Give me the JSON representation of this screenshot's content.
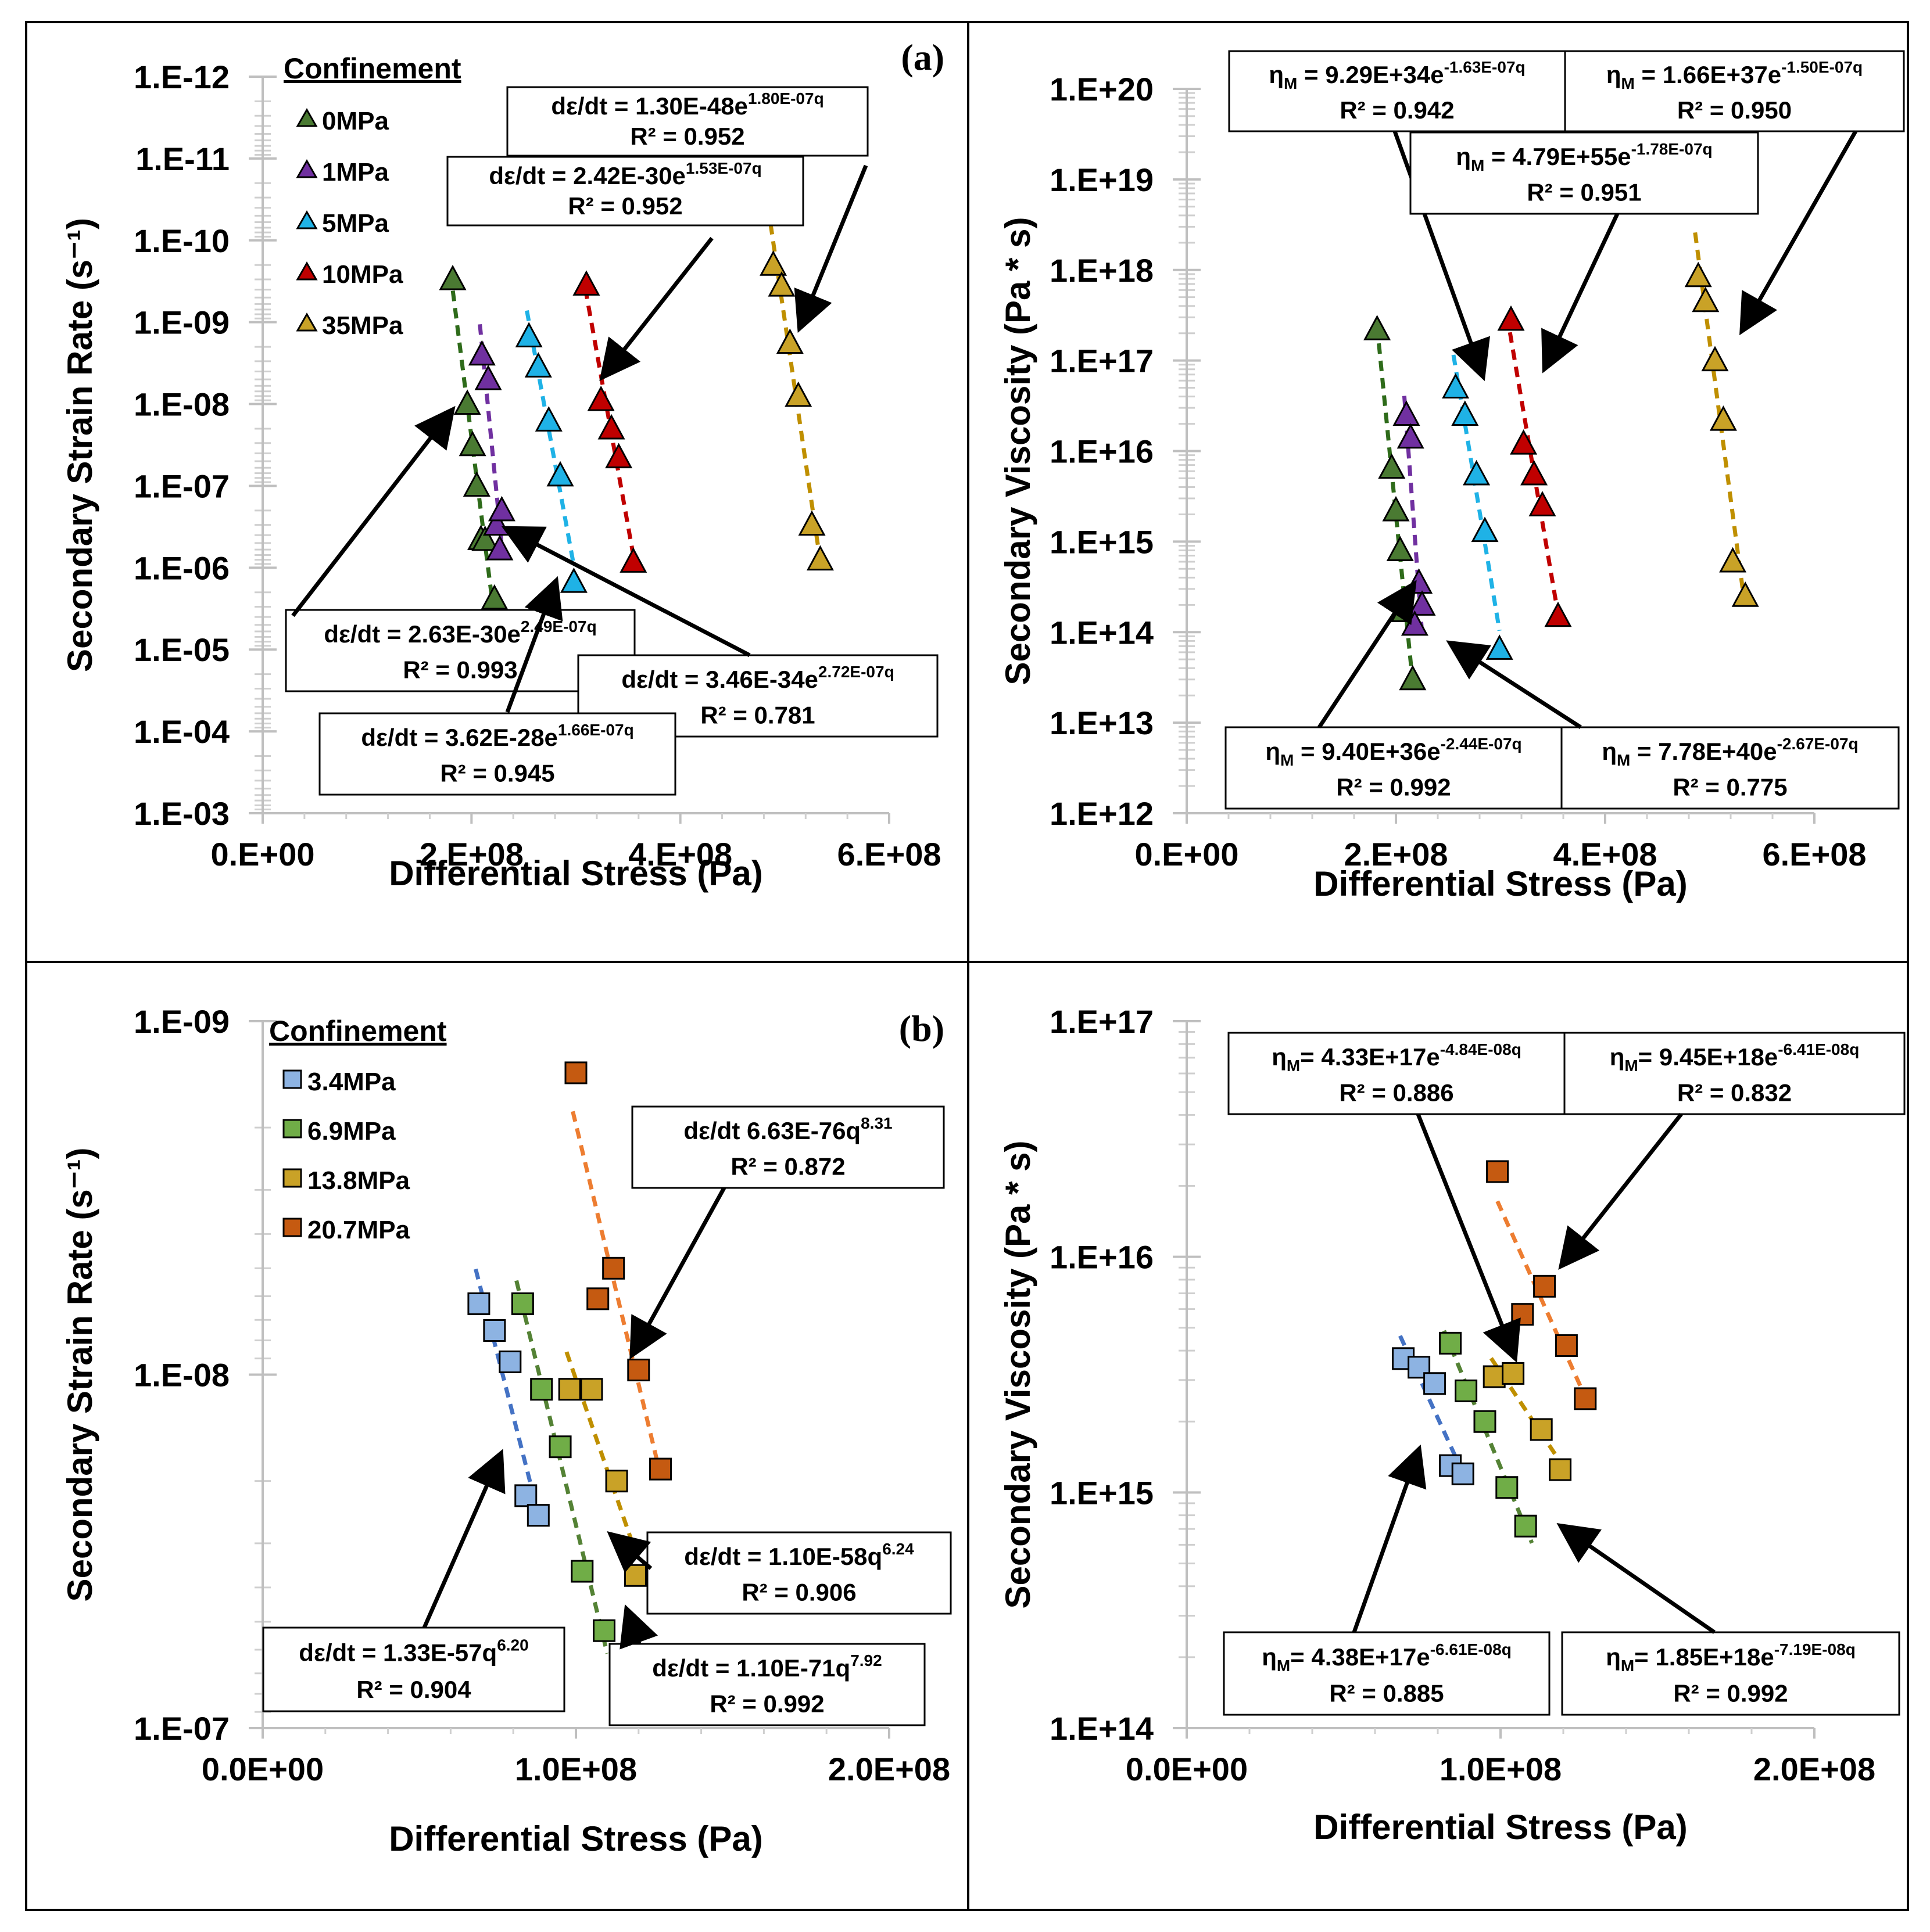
{
  "figure": {
    "labels": {
      "a": "(a)",
      "b": "(b)"
    }
  },
  "chart_data": [
    {
      "id": "a_left",
      "type": "scatter",
      "yscale": "log",
      "yreversed": true,
      "xlabel": "Differential Stress (Pa)",
      "ylabel": "Secondary Strain Rate (s⁻¹)",
      "xlim": [
        0,
        600000000
      ],
      "ylim_exp": [
        -12,
        -3
      ],
      "xticks": [
        "0.E+00",
        "2.E+08",
        "4.E+08",
        "6.E+08"
      ],
      "yticks": [
        "1.E-12",
        "1.E-11",
        "1.E-10",
        "1.E-09",
        "1.E-08",
        "1.E-07",
        "1.E-06",
        "1.E-05",
        "1.E-04",
        "1.E-03"
      ],
      "legend_title": "Confinement",
      "legend_marker": "triangle",
      "series": [
        {
          "name": "0MPa",
          "color": "#4a7a32",
          "line_color": "#2e6b1a",
          "x": [
            182000000,
            196000000,
            201000000,
            205000000,
            209000000,
            213000000,
            222000000
          ],
          "y": [
            3e-10,
            1e-08,
            3.2e-08,
            1e-07,
            4.5e-07,
            4.6e-07,
            2.4e-06
          ],
          "fit_x": [
            180000000,
            222000000
          ]
        },
        {
          "name": "1MPa",
          "color": "#7030a0",
          "line_color": "#7030a0",
          "x": [
            210000000,
            216000000,
            224000000,
            227000000,
            229000000
          ],
          "y": [
            2.5e-09,
            5e-09,
            3e-07,
            6e-07,
            2e-07
          ],
          "fit_x": [
            208000000,
            229000000
          ]
        },
        {
          "name": "5MPa",
          "color": "#1fb2e6",
          "line_color": "#1fb2e6",
          "x": [
            255000000,
            264000000,
            274000000,
            285000000,
            298000000
          ],
          "y": [
            1.5e-09,
            3.5e-09,
            1.6e-08,
            7.5e-08,
            1.5e-06
          ],
          "fit_x": [
            253000000,
            298000000
          ]
        },
        {
          "name": "10MPa",
          "color": "#c00000",
          "line_color": "#c00000",
          "x": [
            310000000,
            324000000,
            334000000,
            341000000,
            355000000
          ],
          "y": [
            3.5e-10,
            9e-09,
            2e-08,
            4.5e-08,
            8.5e-07
          ],
          "fit_x": [
            309000000,
            355000000
          ]
        },
        {
          "name": "35MPa",
          "color": "#c9a227",
          "line_color": "#bf8f00",
          "x": [
            489000000,
            497000000,
            505000000,
            513000000,
            526000000,
            534000000
          ],
          "y": [
            2e-10,
            3.6e-10,
            1.8e-09,
            8e-09,
            3e-07,
            8e-07
          ],
          "fit_x": [
            484000000,
            534000000
          ]
        }
      ],
      "annotations": [
        {
          "line1_pre": "dε/dt = 1.30E-48e",
          "line1_sup": "1.80E-07q",
          "line2": "R² = 0.952"
        },
        {
          "line1_pre": "dε/dt = 2.42E-30e",
          "line1_sup": "1.53E-07q",
          "line2": "R² = 0.952"
        },
        {
          "line1_pre": "dε/dt = 2.63E-30e",
          "line1_sup": "2.49E-07q",
          "line2": "R² = 0.993"
        },
        {
          "line1_pre": "dε/dt = 3.46E-34e",
          "line1_sup": "2.72E-07q",
          "line2": "R² = 0.781"
        },
        {
          "line1_pre": "dε/dt = 3.62E-28e",
          "line1_sup": "1.66E-07q",
          "line2": "R² = 0.945"
        }
      ]
    },
    {
      "id": "a_right",
      "type": "scatter",
      "yscale": "log",
      "yreversed": false,
      "xlabel": "Differential Stress (Pa)",
      "ylabel": "Secondary Viscosity (Pa * s)",
      "xlim": [
        0,
        600000000
      ],
      "ylim_exp": [
        12,
        20
      ],
      "xticks": [
        "0.E+00",
        "2.E+08",
        "4.E+08",
        "6.E+08"
      ],
      "yticks": [
        "1.E+20",
        "1.E+19",
        "1.E+18",
        "1.E+17",
        "1.E+16",
        "1.E+15",
        "1.E+14",
        "1.E+13",
        "1.E+12"
      ],
      "legend_marker": "triangle",
      "series": [
        {
          "name": "0MPa",
          "color": "#4a7a32",
          "line_color": "#2e6b1a",
          "x": [
            182000000,
            196000000,
            200000000,
            204000000,
            208000000,
            216000000
          ],
          "y": [
            2.2e+17,
            6500000000000000.0,
            2200000000000000.0,
            800000000000000.0,
            170000000000000.0,
            30000000000000.0
          ],
          "fit_x": [
            182000000,
            216000000
          ]
        },
        {
          "name": "1MPa",
          "color": "#7030a0",
          "line_color": "#7030a0",
          "x": [
            210000000,
            214000000,
            222000000,
            225000000,
            218000000
          ],
          "y": [
            2.5e+16,
            1.4e+16,
            350000000000000.0,
            200000000000000.0,
            120000000000000.0
          ],
          "fit_x": [
            208000000,
            225000000
          ]
        },
        {
          "name": "5MPa",
          "color": "#1fb2e6",
          "line_color": "#1fb2e6",
          "x": [
            257000000,
            266000000,
            277000000,
            285000000,
            299000000
          ],
          "y": [
            5e+16,
            2.5e+16,
            5500000000000000.0,
            1300000000000000.0,
            65000000000000.0
          ],
          "fit_x": [
            255000000,
            299000000
          ]
        },
        {
          "name": "10MPa",
          "color": "#c00000",
          "line_color": "#c00000",
          "x": [
            310000000,
            322000000,
            332000000,
            340000000,
            355000000
          ],
          "y": [
            2.8e+17,
            1.2e+16,
            5500000000000000.0,
            2500000000000000.0,
            150000000000000.0
          ],
          "fit_x": [
            309000000,
            355000000
          ]
        },
        {
          "name": "35MPa",
          "color": "#c9a227",
          "line_color": "#bf8f00",
          "x": [
            489000000,
            496000000,
            505000000,
            513000000,
            522000000,
            534000000
          ],
          "y": [
            8.5e+17,
            4.5e+17,
            1e+17,
            2.2e+16,
            600000000000000.0,
            250000000000000.0
          ],
          "fit_x": [
            486000000,
            534000000
          ]
        }
      ],
      "annotations": [
        {
          "line1_pre": "η",
          "line1_sub": "M",
          "line1_mid": " = 9.29E+34e",
          "line1_sup": "-1.63E-07q",
          "line2": "R² = 0.942"
        },
        {
          "line1_pre": "η",
          "line1_sub": "M",
          "line1_mid": " = 1.66E+37e",
          "line1_sup": "-1.50E-07q",
          "line2": "R² = 0.950"
        },
        {
          "line1_pre": "η",
          "line1_sub": "M",
          "line1_mid": " = 4.79E+55e",
          "line1_sup": "-1.78E-07q",
          "line2": "R² = 0.951"
        },
        {
          "line1_pre": "η",
          "line1_sub": "M",
          "line1_mid": " = 9.40E+36e",
          "line1_sup": "-2.44E-07q",
          "line2": "R² = 0.992"
        },
        {
          "line1_pre": "η",
          "line1_sub": "M",
          "line1_mid": " = 7.78E+40e",
          "line1_sup": "-2.67E-07q",
          "line2": "R² = 0.775"
        }
      ]
    },
    {
      "id": "b_left",
      "type": "scatter",
      "yscale": "log",
      "yreversed": true,
      "xlabel": "Differential Stress (Pa)",
      "ylabel": "Secondary Strain Rate (s⁻¹)",
      "xlim": [
        0,
        200000000
      ],
      "ylim_exp": [
        -9,
        -7
      ],
      "xticks": [
        "0.0E+00",
        "1.0E+08",
        "2.0E+08"
      ],
      "yticks": [
        "1.E-09",
        "1.E-08",
        "1.E-07"
      ],
      "legend_title": "Confinement",
      "legend_marker": "square",
      "series": [
        {
          "name": "3.4MPa",
          "color": "#8db3e2",
          "line_color": "#4472c4",
          "x": [
            69000000,
            74000000,
            79000000,
            84000000,
            88000000
          ],
          "y": [
            6.3e-09,
            7.5e-09,
            9.2e-09,
            2.2e-08,
            2.5e-08
          ],
          "fit_x": [
            68000000,
            88000000
          ]
        },
        {
          "name": "6.9MPa",
          "color": "#70ad47",
          "line_color": "#548235",
          "x": [
            83000000,
            89000000,
            95000000,
            102000000,
            109000000
          ],
          "y": [
            6.3e-09,
            1.1e-08,
            1.6e-08,
            3.6e-08,
            5.3e-08
          ],
          "fit_x": [
            81000000,
            110000000
          ]
        },
        {
          "name": "13.8MPa",
          "color": "#c9a227",
          "line_color": "#bf8f00",
          "x": [
            98000000,
            105000000,
            113000000,
            119000000
          ],
          "y": [
            1.1e-08,
            1.1e-08,
            2e-08,
            3.7e-08
          ],
          "fit_x": [
            97000000,
            119000000
          ]
        },
        {
          "name": "20.7MPa",
          "color": "#c55a11",
          "line_color": "#ed7d31",
          "x": [
            100000000,
            107000000,
            112000000,
            120000000,
            127000000
          ],
          "y": [
            1.4e-09,
            6.1e-09,
            5e-09,
            9.7e-09,
            1.85e-08
          ],
          "fit_x": [
            99000000,
            127000000
          ]
        }
      ],
      "annotations": [
        {
          "line1_pre": "dε/dt  6.63E-76q",
          "line1_sup": "8.31",
          "line2": "R² = 0.872"
        },
        {
          "line1_pre": "dε/dt = 1.10E-58q",
          "line1_sup": "6.24",
          "line2": "R² = 0.906"
        },
        {
          "line1_pre": "dε/dt = 1.33E-57q",
          "line1_sup": "6.20",
          "line2": "R² = 0.904"
        },
        {
          "line1_pre": "dε/dt  = 1.10E-71q",
          "line1_sup": "7.92",
          "line2": "R² = 0.992"
        }
      ]
    },
    {
      "id": "b_right",
      "type": "scatter",
      "yscale": "log",
      "yreversed": false,
      "xlabel": "Differential Stress (Pa)",
      "ylabel": "Secondary Viscosity (Pa * s)",
      "xlim": [
        0,
        200000000
      ],
      "ylim_exp": [
        14,
        17
      ],
      "xticks": [
        "0.0E+00",
        "1.0E+08",
        "2.0E+08"
      ],
      "yticks": [
        "1.E+17",
        "1.E+16",
        "1.E+15",
        "1.E+14"
      ],
      "legend_marker": "square",
      "series": [
        {
          "name": "3.4MPa",
          "color": "#8db3e2",
          "line_color": "#4472c4",
          "x": [
            69000000,
            74000000,
            79000000,
            84000000,
            88000000
          ],
          "y": [
            3700000000000000.0,
            3400000000000000.0,
            2900000000000000.0,
            1300000000000000.0,
            1200000000000000.0
          ],
          "fit_x": [
            68000000,
            88000000
          ]
        },
        {
          "name": "6.9MPa",
          "color": "#70ad47",
          "line_color": "#548235",
          "x": [
            84000000,
            89000000,
            95000000,
            102000000,
            108000000
          ],
          "y": [
            4300000000000000.0,
            2700000000000000.0,
            2000000000000000.0,
            1050000000000000.0,
            720000000000000.0
          ],
          "fit_x": [
            82000000,
            110000000
          ]
        },
        {
          "name": "13.8MPa",
          "color": "#c9a227",
          "line_color": "#bf8f00",
          "x": [
            98000000,
            104000000,
            113000000,
            119000000
          ],
          "y": [
            3100000000000000.0,
            3200000000000000.0,
            1850000000000000.0,
            1250000000000000.0
          ],
          "fit_x": [
            97000000,
            119000000
          ]
        },
        {
          "name": "20.7MPa",
          "color": "#c55a11",
          "line_color": "#ed7d31",
          "x": [
            99000000,
            107000000,
            114000000,
            121000000,
            127000000
          ],
          "y": [
            2.3e+16,
            5700000000000000.0,
            7500000000000000.0,
            4200000000000000.0,
            2500000000000000.0
          ],
          "fit_x": [
            99000000,
            127000000
          ]
        }
      ],
      "annotations": [
        {
          "line1_pre": "η",
          "line1_sub": "M",
          "line1_mid": "= 4.33E+17e",
          "line1_sup": "-4.84E-08q",
          "line2": "R² = 0.886"
        },
        {
          "line1_pre": "η",
          "line1_sub": "M",
          "line1_mid": "= 9.45E+18e",
          "line1_sup": "-6.41E-08q",
          "line2": "R² = 0.832"
        },
        {
          "line1_pre": "η",
          "line1_sub": "M",
          "line1_mid": "= 4.38E+17e",
          "line1_sup": "-6.61E-08q",
          "line2": "R² = 0.885"
        },
        {
          "line1_pre": "η",
          "line1_sub": "M",
          "line1_mid": "= 1.85E+18e",
          "line1_sup": "-7.19E-08q",
          "line2": "R² = 0.992"
        }
      ]
    }
  ]
}
